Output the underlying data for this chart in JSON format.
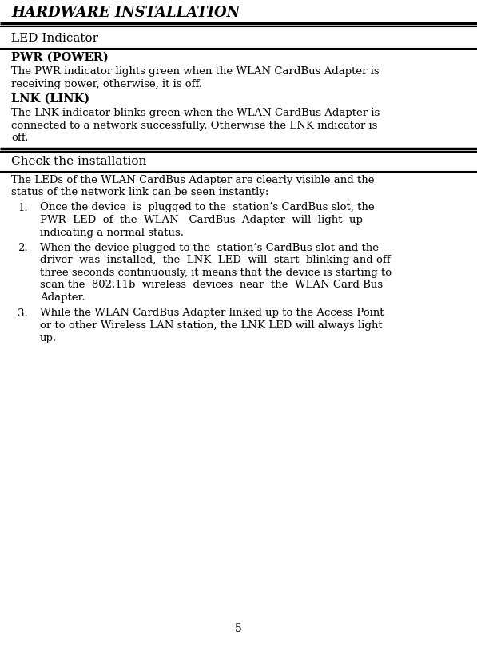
{
  "title": "HARDWARE INSTALLATION",
  "section1": "LED Indicator",
  "pwr_heading": "PWR (POWER)",
  "pwr_text_line1": "The PWR indicator lights green when the WLAN CardBus Adapter is",
  "pwr_text_line2": "receiving power, otherwise, it is off.",
  "lnk_heading": "LNK (LINK)",
  "lnk_text_line1": "The LNK indicator blinks green when the WLAN CardBus Adapter is",
  "lnk_text_line2": "connected to a network successfully. Otherwise the LNK indicator is",
  "lnk_text_line3": "off.",
  "section2": "Check the installation",
  "intro_line1": "The LEDs of the WLAN CardBus Adapter are clearly visible and the",
  "intro_line2": "status of the network link can be seen instantly:",
  "item1_num": "1.",
  "item1_lines": [
    "Once the device  is  plugged to the  station’s CardBus slot, the",
    "PWR  LED  of  the  WLAN   CardBus  Adapter  will  light  up",
    "indicating a normal status."
  ],
  "item2_num": "2.",
  "item2_lines": [
    "When the device plugged to the  station’s CardBus slot and the",
    "driver  was  installed,  the  LNK  LED  will  start  blinking and off",
    "three seconds continuously, it means that the device is starting to",
    "scan the  802.11b  wireless  devices  near  the  WLAN Card Bus",
    "Adapter."
  ],
  "item3_num": "3.",
  "item3_lines": [
    "While the WLAN CardBus Adapter linked up to the Access Point",
    "or to other Wireless LAN station, the LNK LED will always light",
    "up."
  ],
  "page_number": "5",
  "bg_color": "#ffffff",
  "text_color": "#000000"
}
